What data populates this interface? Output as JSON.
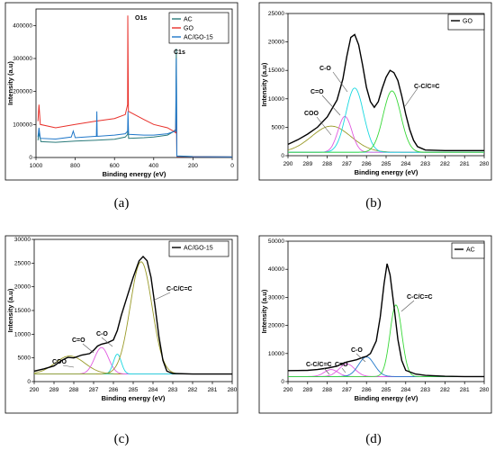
{
  "colors": {
    "black": "#000000",
    "red": "#e8302a",
    "blue": "#1f77c9",
    "teal": "#1aa0a0",
    "cyan": "#18d8e0",
    "magenta": "#e05ae0",
    "green": "#38d838",
    "olive": "#9a9a28",
    "dark_teal": "#2a7a7a"
  },
  "captions": [
    "(a)",
    "(b)",
    "(c)",
    "(d)"
  ],
  "chart_data": [
    {
      "id": "a",
      "type": "line",
      "xlabel": "Binding energy (eV)",
      "ylabel": "Intensity (a.u)",
      "xlim": [
        1000,
        0
      ],
      "ylim": [
        0,
        450000
      ],
      "xticks": [
        1000,
        800,
        600,
        400,
        200,
        0
      ],
      "yticks": [
        0,
        100000,
        200000,
        300000,
        400000
      ],
      "legend_position": "top-right",
      "annotations": [
        "O1s",
        "C1s"
      ],
      "series": [
        {
          "name": "AC",
          "color_key": "dark_teal",
          "points": [
            [
              990,
              52000
            ],
            [
              985,
              75000
            ],
            [
              975,
              48000
            ],
            [
              900,
              46000
            ],
            [
              800,
              50000
            ],
            [
              700,
              52000
            ],
            [
              600,
              55000
            ],
            [
              545,
              62000
            ],
            [
              533,
              70000
            ],
            [
              531,
              100000
            ],
            [
              528,
              58000
            ],
            [
              450,
              60000
            ],
            [
              400,
              62000
            ],
            [
              330,
              68000
            ],
            [
              300,
              78000
            ],
            [
              288,
              85000
            ],
            [
              285,
              330000
            ],
            [
              282,
              5000
            ],
            [
              200,
              3000
            ],
            [
              0,
              2000
            ]
          ]
        },
        {
          "name": "GO",
          "color_key": "red",
          "points": [
            [
              990,
              110000
            ],
            [
              985,
              160000
            ],
            [
              978,
              100000
            ],
            [
              900,
              90000
            ],
            [
              800,
              100000
            ],
            [
              700,
              110000
            ],
            [
              600,
              118000
            ],
            [
              545,
              130000
            ],
            [
              533,
              160000
            ],
            [
              532,
              430000
            ],
            [
              529,
              140000
            ],
            [
              450,
              115000
            ],
            [
              400,
              100000
            ],
            [
              330,
              90000
            ],
            [
              300,
              80000
            ],
            [
              288,
              75000
            ],
            [
              285,
              185000
            ],
            [
              282,
              3000
            ],
            [
              200,
              2000
            ],
            [
              0,
              1500
            ]
          ]
        },
        {
          "name": "AC/GO-15",
          "color_key": "blue",
          "points": [
            [
              990,
              62000
            ],
            [
              985,
              90000
            ],
            [
              978,
              58000
            ],
            [
              900,
              56000
            ],
            [
              820,
              62000
            ],
            [
              810,
              80000
            ],
            [
              800,
              60000
            ],
            [
              700,
              64000
            ],
            [
              692,
              64000
            ],
            [
              690,
              140000
            ],
            [
              688,
              64000
            ],
            [
              600,
              68000
            ],
            [
              545,
              72000
            ],
            [
              533,
              80000
            ],
            [
              531,
              140000
            ],
            [
              528,
              70000
            ],
            [
              450,
              68000
            ],
            [
              400,
              68000
            ],
            [
              330,
              72000
            ],
            [
              300,
              78000
            ],
            [
              288,
              80000
            ],
            [
              285,
              300000
            ],
            [
              282,
              4000
            ],
            [
              200,
              2500
            ],
            [
              0,
              1500
            ]
          ]
        }
      ]
    },
    {
      "id": "b",
      "type": "line",
      "xlabel": "Binding energy (eV)",
      "ylabel": "Intensity (a.u)",
      "xlim": [
        290,
        280
      ],
      "ylim": [
        0,
        25000
      ],
      "xticks": [
        290,
        289,
        288,
        287,
        286,
        285,
        284,
        283,
        282,
        281,
        280
      ],
      "yticks": [
        0,
        5000,
        10000,
        15000,
        20000,
        25000
      ],
      "legend_position": "top-right",
      "annotations": [
        "C-O",
        "C=O",
        "COO",
        "C-C/C=C"
      ],
      "envelope": {
        "name": "GO",
        "color_key": "black",
        "points": [
          [
            290,
            2000
          ],
          [
            289.5,
            2800
          ],
          [
            289,
            3800
          ],
          [
            288.5,
            5000
          ],
          [
            288,
            6800
          ],
          [
            287.5,
            9800
          ],
          [
            287.2,
            13500
          ],
          [
            287,
            17500
          ],
          [
            286.8,
            20800
          ],
          [
            286.6,
            21300
          ],
          [
            286.4,
            19500
          ],
          [
            286.2,
            16000
          ],
          [
            286,
            12000
          ],
          [
            285.8,
            9500
          ],
          [
            285.6,
            8500
          ],
          [
            285.4,
            9500
          ],
          [
            285.2,
            11800
          ],
          [
            285,
            13800
          ],
          [
            284.8,
            15000
          ],
          [
            284.6,
            14600
          ],
          [
            284.4,
            13200
          ],
          [
            284.2,
            10500
          ],
          [
            284,
            7300
          ],
          [
            283.8,
            4600
          ],
          [
            283.6,
            2700
          ],
          [
            283.4,
            1600
          ],
          [
            283,
            1000
          ],
          [
            282,
            900
          ],
          [
            281,
            900
          ],
          [
            280,
            900
          ]
        ]
      },
      "peaks": [
        {
          "label": "COO",
          "color_key": "olive",
          "center": 287.8,
          "height": 4600,
          "width": 1.0
        },
        {
          "label": "C=O",
          "color_key": "magenta",
          "center": 287.1,
          "height": 6300,
          "width": 0.35
        },
        {
          "label": "C-O",
          "color_key": "cyan",
          "center": 286.6,
          "height": 11300,
          "width": 0.45
        },
        {
          "label": "C-C/C=C",
          "color_key": "green",
          "center": 284.7,
          "height": 10800,
          "width": 0.45
        }
      ],
      "baseline": 600
    },
    {
      "id": "c",
      "type": "line",
      "xlabel": "Binding energy (eV)",
      "ylabel": "Intensity (a.u)",
      "xlim": [
        290,
        280
      ],
      "ylim": [
        0,
        30000
      ],
      "xticks": [
        290,
        289,
        288,
        287,
        286,
        285,
        284,
        283,
        282,
        281,
        280
      ],
      "yticks": [
        0,
        5000,
        10000,
        15000,
        20000,
        25000,
        30000
      ],
      "legend_position": "top-right",
      "annotations": [
        "COO",
        "C=O",
        "C-O",
        "C-C/C=C"
      ],
      "envelope": {
        "name": "AC/GO-15",
        "color_key": "black",
        "points": [
          [
            290,
            2200
          ],
          [
            289.5,
            2700
          ],
          [
            289,
            3300
          ],
          [
            288.6,
            4500
          ],
          [
            288.3,
            5100
          ],
          [
            288,
            5000
          ],
          [
            287.6,
            5600
          ],
          [
            287.2,
            5900
          ],
          [
            287,
            6600
          ],
          [
            286.8,
            7500
          ],
          [
            286.6,
            7900
          ],
          [
            286.3,
            8200
          ],
          [
            286,
            8800
          ],
          [
            285.8,
            10800
          ],
          [
            285.6,
            14000
          ],
          [
            285.3,
            18000
          ],
          [
            285,
            22000
          ],
          [
            284.7,
            25500
          ],
          [
            284.5,
            26400
          ],
          [
            284.3,
            25500
          ],
          [
            284.1,
            22000
          ],
          [
            283.9,
            16000
          ],
          [
            283.7,
            9500
          ],
          [
            283.5,
            4500
          ],
          [
            283.3,
            2200
          ],
          [
            283,
            1700
          ],
          [
            282,
            1600
          ],
          [
            281,
            1600
          ],
          [
            280,
            1600
          ]
        ]
      },
      "peaks": [
        {
          "label": "COO",
          "color_key": "olive",
          "center": 288.2,
          "height": 3800,
          "width": 0.75
        },
        {
          "label": "C=O",
          "color_key": "magenta",
          "center": 286.6,
          "height": 5600,
          "width": 0.35
        },
        {
          "label": "C-O",
          "color_key": "cyan",
          "center": 285.8,
          "height": 4200,
          "width": 0.2
        },
        {
          "label": "C-C/C=C",
          "color_key": "olive",
          "center": 284.6,
          "height": 23700,
          "width": 0.55
        }
      ],
      "baseline": 1600
    },
    {
      "id": "d",
      "type": "line",
      "xlabel": "Binding energy (eV)",
      "ylabel": "Intensity (a.u)",
      "xlim": [
        290,
        280
      ],
      "ylim": [
        0,
        50000
      ],
      "xticks": [
        290,
        289,
        288,
        287,
        286,
        285,
        284,
        283,
        282,
        281,
        280
      ],
      "yticks": [
        0,
        10000,
        20000,
        30000,
        40000,
        50000
      ],
      "legend_position": "top-right",
      "annotations": [
        "C-C/C=C",
        "C=O",
        "C-O",
        "C-C/C=C"
      ],
      "envelope": {
        "name": "AC",
        "color_key": "black",
        "points": [
          [
            290,
            3900
          ],
          [
            289.5,
            3950
          ],
          [
            289,
            4000
          ],
          [
            288.5,
            4300
          ],
          [
            288,
            4800
          ],
          [
            287.5,
            5500
          ],
          [
            287.2,
            6500
          ],
          [
            287,
            7000
          ],
          [
            286.8,
            7300
          ],
          [
            286.5,
            7800
          ],
          [
            286.2,
            8600
          ],
          [
            286,
            9000
          ],
          [
            285.8,
            10000
          ],
          [
            285.5,
            14500
          ],
          [
            285.3,
            23000
          ],
          [
            285.1,
            35000
          ],
          [
            284.95,
            42000
          ],
          [
            284.8,
            38000
          ],
          [
            284.6,
            27000
          ],
          [
            284.4,
            15000
          ],
          [
            284.2,
            7500
          ],
          [
            284,
            4000
          ],
          [
            283.5,
            2700
          ],
          [
            283,
            2200
          ],
          [
            282,
            1900
          ],
          [
            281,
            1800
          ],
          [
            280,
            1800
          ]
        ]
      },
      "peaks": [
        {
          "label": "C-C/C=C",
          "color_key": "magenta",
          "center": 287.8,
          "height": 2500,
          "width": 0.35
        },
        {
          "label": "C=O",
          "color_key": "magenta",
          "center": 287.0,
          "height": 4500,
          "width": 0.4
        },
        {
          "label": "C-O",
          "color_key": "blue",
          "center": 286.0,
          "height": 7000,
          "width": 0.4
        },
        {
          "label": "C-C/C=C",
          "color_key": "green",
          "center": 284.5,
          "height": 25500,
          "width": 0.3
        }
      ],
      "baseline": 1800
    }
  ]
}
